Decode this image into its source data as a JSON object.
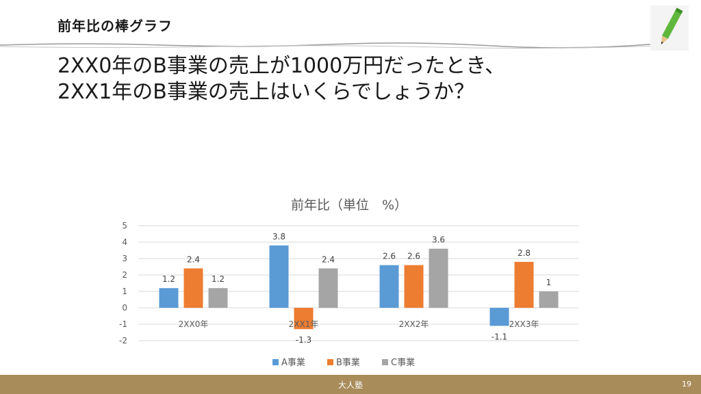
{
  "header": {
    "title": "前年比の棒グラフ"
  },
  "question": {
    "line1": "2XX0年のB事業の売上が1000万円だったとき、",
    "line2": "2XX1年のB事業の売上はいくらでしょうか？"
  },
  "footer": {
    "brand": "大人塾",
    "page": "19"
  },
  "chart_data": {
    "type": "bar",
    "title": "前年比（単位　%）",
    "categories": [
      "2XX0年",
      "2XX1年",
      "2XX2年",
      "2XX3年"
    ],
    "series": [
      {
        "name": "A事業",
        "color": "#5b9bd5",
        "values": [
          1.2,
          3.8,
          2.6,
          -1.1
        ]
      },
      {
        "name": "B事業",
        "color": "#ed7d31",
        "values": [
          2.4,
          -1.3,
          2.6,
          2.8
        ]
      },
      {
        "name": "C事業",
        "color": "#a5a5a5",
        "values": [
          1.2,
          2.4,
          3.6,
          1
        ]
      }
    ],
    "ylim": [
      -2,
      5
    ],
    "yticks": [
      5,
      4,
      3,
      2,
      1,
      0,
      -1,
      -2
    ],
    "grid": true,
    "legend": "bottom",
    "data_labels": true
  }
}
